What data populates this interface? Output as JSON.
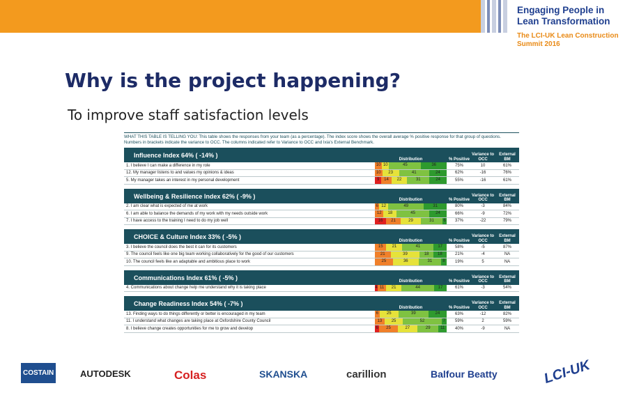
{
  "header": {
    "title": "Engaging People in Lean Transformation",
    "subtitle": "The LCI-UK Lean Construction Summit 2016"
  },
  "slide": {
    "title": "Why is the project happening?",
    "subtitle": "To improve staff satisfaction levels"
  },
  "table": {
    "intro": "WHAT THIS TABLE IS TELLING YOU: This table shows the responses from your team (as a percentage). The index score shows the overall average % positive response for that group of questions. Numbers in brackets indicate the variance to OCC. The columns indicated refer to Variance to OCC and Ixia's External Benchmark.",
    "columns": [
      "Distribution",
      "% Positive",
      "Variance to OCC",
      "External BM"
    ],
    "sections": [
      {
        "title": "Influence Index 64% ( -14% )",
        "rows": [
          {
            "question": "1. I believe I can make a difference in my role",
            "distribution": [
              10,
              10,
              45,
              36
            ],
            "positive": "75%",
            "variance": "10",
            "bm": "61%"
          },
          {
            "question": "12. My manager listens to and values my opinions & ideas",
            "distribution": [
              10,
              23,
              41,
              24
            ],
            "positive": "62%",
            "variance": "-16",
            "bm": "76%"
          },
          {
            "question": "5. My manager takes an interest in my personal development",
            "distribution": [
              9,
              14,
              22,
              31,
              24
            ],
            "positive": "55%",
            "variance": "-16",
            "bm": "61%"
          }
        ]
      },
      {
        "title": "Wellbeing & Resilience Index 62% ( -9% )",
        "rows": [
          {
            "question": "2. I am clear what is expected of me at work",
            "distribution": [
              6,
              12,
              49,
              31
            ],
            "positive": "80%",
            "variance": "-3",
            "bm": "84%"
          },
          {
            "question": "6. I am able to balance the demands of my work with my needs outside work",
            "distribution": [
              12,
              18,
              45,
              24
            ],
            "positive": "66%",
            "variance": "-9",
            "bm": "72%"
          },
          {
            "question": "7. I have access to the training I need to do my job well",
            "distribution": [
              16,
              21,
              29,
              31,
              6
            ],
            "positive": "37%",
            "variance": "-22",
            "bm": "79%"
          }
        ]
      },
      {
        "title": "CHOICE & Culture Index 33% ( -5% )",
        "rows": [
          {
            "question": "3. I believe the council does the best it can for its customers",
            "distribution": [
              15,
              21,
              41,
              17
            ],
            "positive": "58%",
            "variance": "-5",
            "bm": "87%"
          },
          {
            "question": "9. The council feels like one big team working collaboratively for the good of our customers",
            "distribution": [
              21,
              39,
              18,
              18
            ],
            "positive": "21%",
            "variance": "-4",
            "bm": "NA"
          },
          {
            "question": "10. The council feels like an adaptable and ambitious place to work",
            "distribution": [
              25,
              36,
              31,
              8
            ],
            "positive": "19%",
            "variance": "5",
            "bm": "NA"
          }
        ]
      },
      {
        "title": "Communications Index 61% ( -5% )",
        "rows": [
          {
            "question": "4. Communications about change help me understand why it is taking place",
            "distribution": [
              4,
              11,
              21,
              44,
              17
            ],
            "positive": "61%",
            "variance": "-3",
            "bm": "54%"
          }
        ]
      },
      {
        "title": "Change Readiness Index 54% ( -7% )",
        "rows": [
          {
            "question": "13. Finding ways to do things differently or better is encouraged in my team",
            "distribution": [
              6,
              25,
              39,
              24
            ],
            "positive": "63%",
            "variance": "-12",
            "bm": "82%"
          },
          {
            "question": "11. I understand what changes are taking place at Oxfordshire County Council",
            "distribution": [
              13,
              25,
              52,
              7
            ],
            "positive": "59%",
            "variance": "2",
            "bm": "59%"
          },
          {
            "question": "8. I believe change creates opportunities for me to grow and develop",
            "distribution": [
              6,
              25,
              27,
              29,
              11
            ],
            "positive": "40%",
            "variance": "-9",
            "bm": "NA"
          }
        ]
      }
    ]
  },
  "logos": [
    "COSTAIN",
    "AUTODESK",
    "Colas",
    "SKANSKA",
    "carillion",
    "Balfour Beatty",
    "LCI-UK"
  ]
}
